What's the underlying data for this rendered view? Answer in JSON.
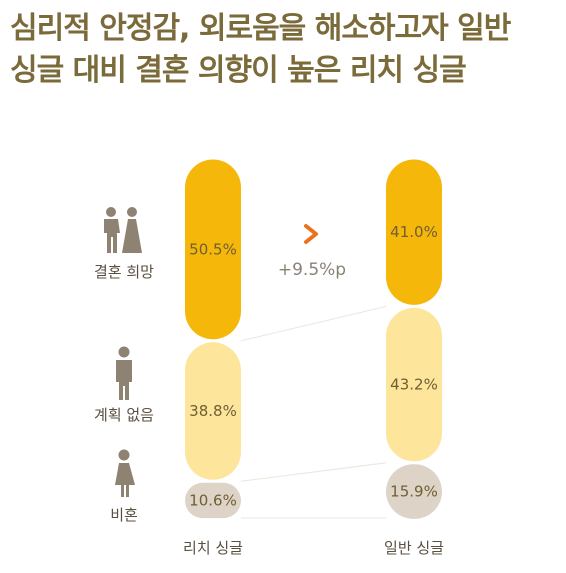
{
  "title": {
    "line1": "심리적 안정감, 외로움을 해소하고자 일반",
    "line2": "싱글 대비 결혼 의향이 높은 리치 싱글"
  },
  "colors": {
    "title": "#7b6a3a",
    "marriage": "#f5b70a",
    "no_plan": "#fde59c",
    "non_marriage": "#ddd4c7",
    "arrow": "#e8731c"
  },
  "icons": {
    "marriage": "wedding-couple-icon",
    "no_plan": "man-icon",
    "non_marriage": "woman-icon",
    "comparison": "chevron-right-icon"
  },
  "chart_data": {
    "type": "bar",
    "stacked": true,
    "categories": [
      "리치 싱글",
      "일반 싱글"
    ],
    "series": [
      {
        "name": "결혼 희망",
        "values": [
          50.5,
          41.0
        ],
        "labels": [
          "50.5%",
          "41.0%"
        ]
      },
      {
        "name": "계획 없음",
        "values": [
          38.8,
          43.2
        ],
        "labels": [
          "38.8%",
          "43.2%"
        ]
      },
      {
        "name": "비혼",
        "values": [
          10.6,
          15.9
        ],
        "labels": [
          "10.6%",
          "15.9%"
        ]
      }
    ],
    "annotation": "+9.5%p",
    "ylim": [
      0,
      100
    ]
  }
}
